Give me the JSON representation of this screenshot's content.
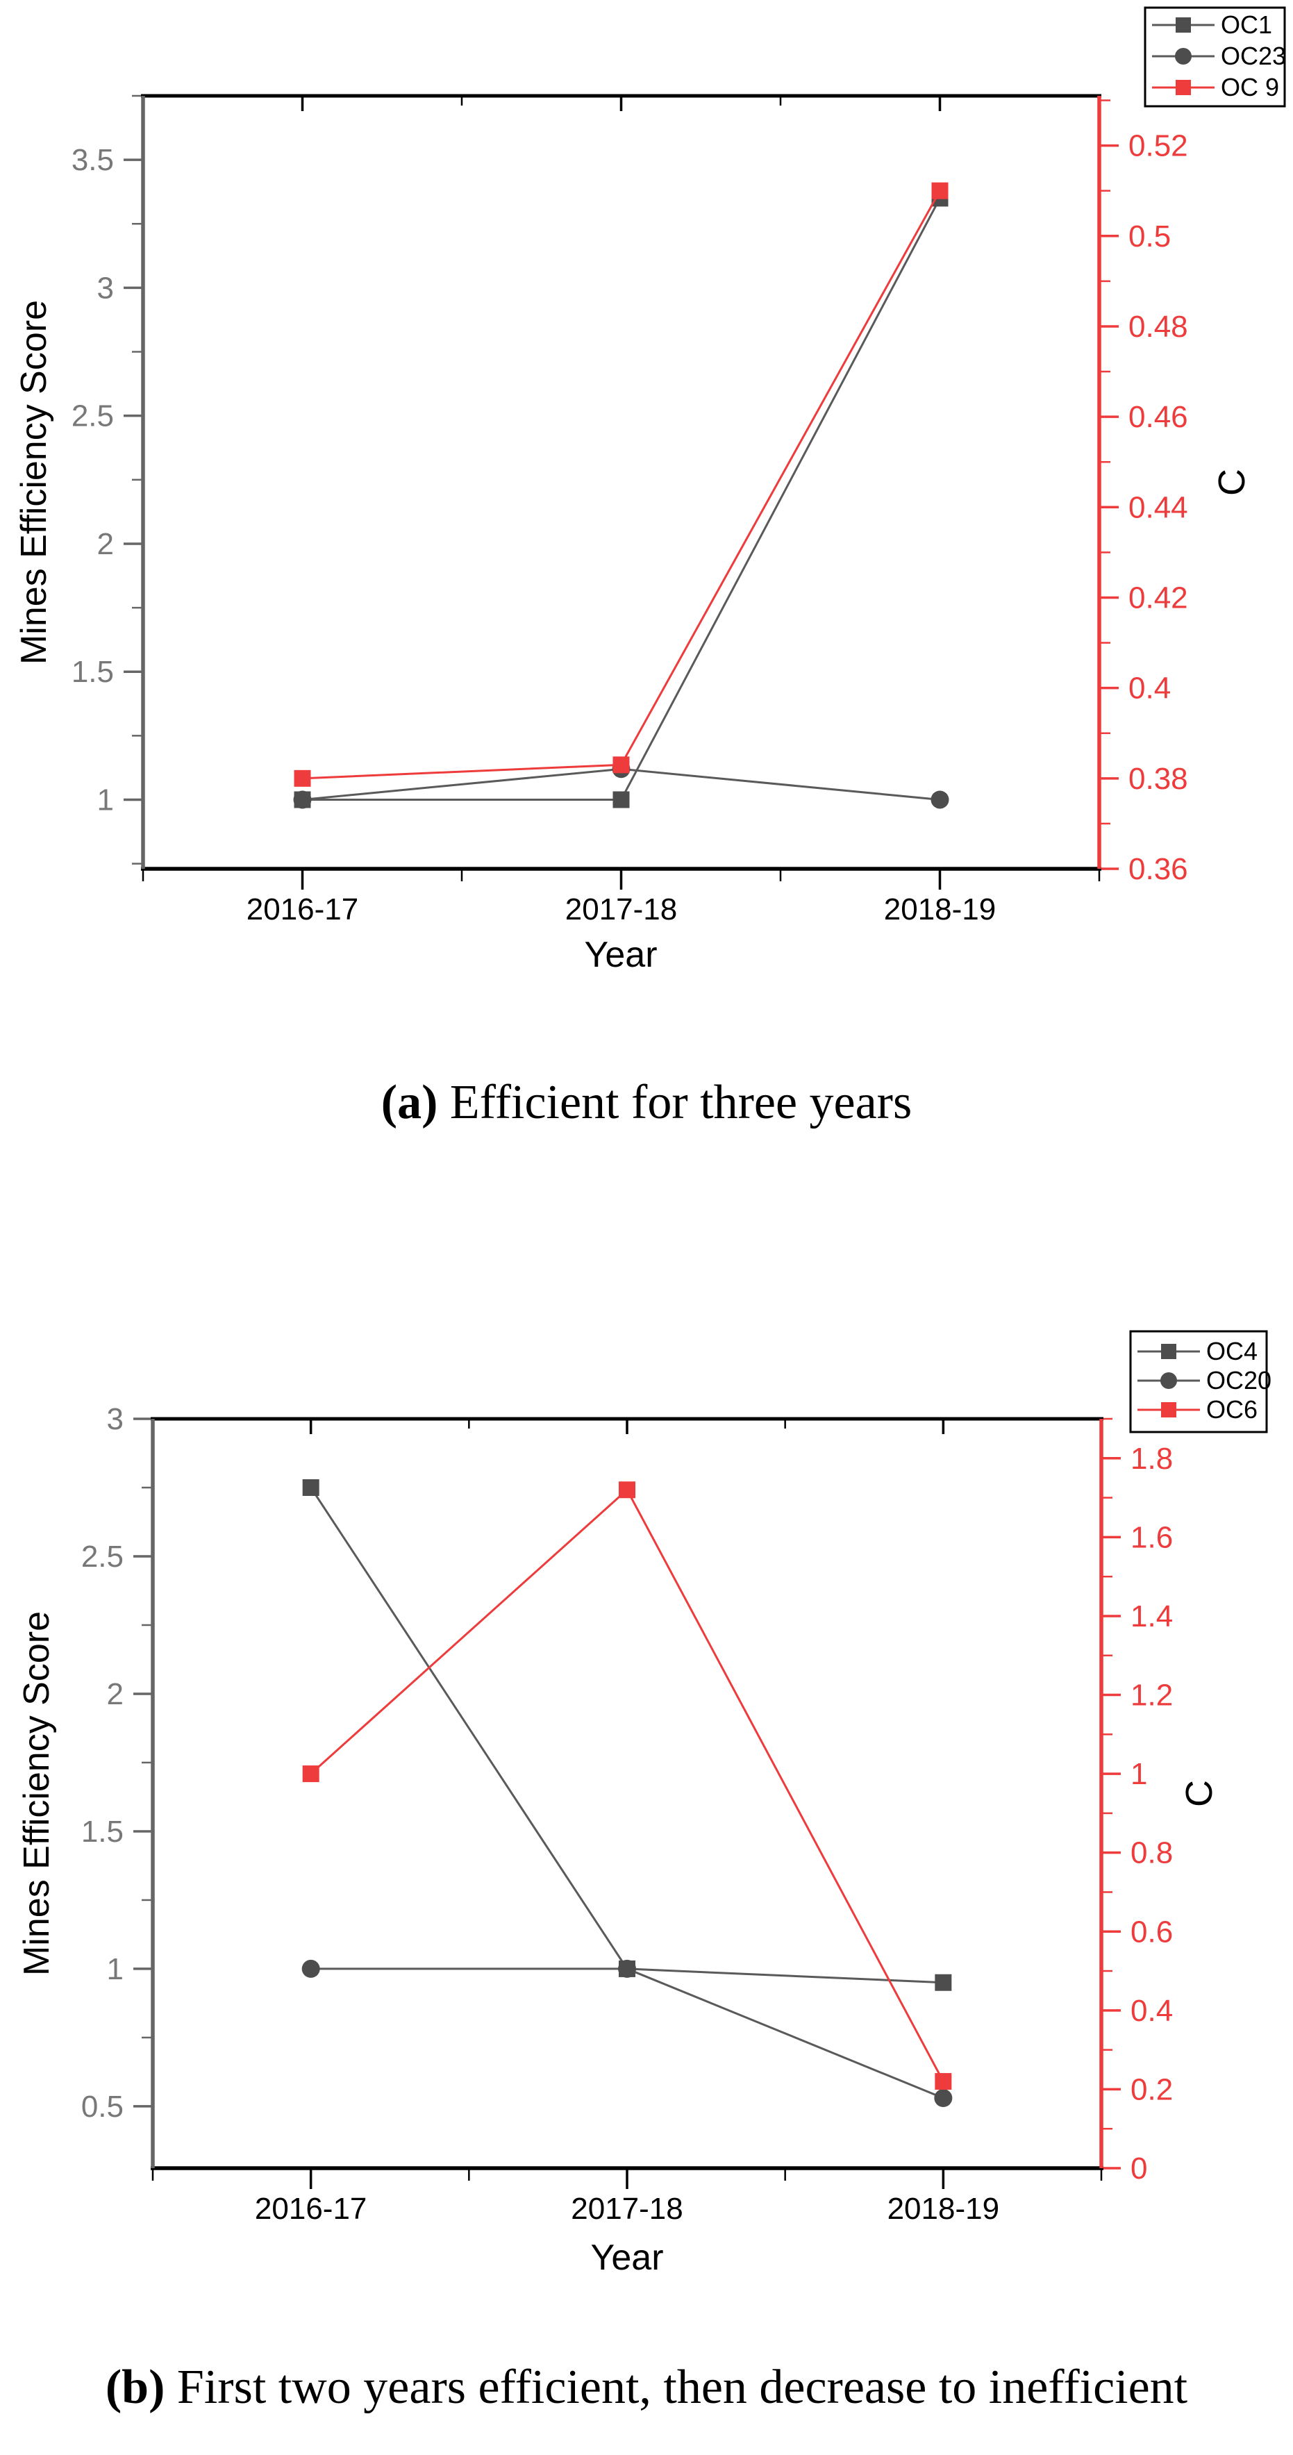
{
  "figure": {
    "caption_a": {
      "marker": "(a)",
      "text": " Efficient for three years"
    },
    "caption_b": {
      "marker": "(b)",
      "text": " First two years efficient, then decrease to inefficient"
    }
  },
  "colors": {
    "red_accent": "#EE3B3B",
    "dark_marker": "#4D4D4D",
    "dark_line": "#5A5A5A",
    "left_axis": "#666666",
    "left_tick_label": "#787878",
    "black": "#000000",
    "background": "#FFFFFF"
  },
  "chart_data": [
    {
      "id": "a",
      "type": "line",
      "categories": [
        "2016-17",
        "2017-18",
        "2018-19"
      ],
      "xlabel": "Year",
      "ylabel_left": "Mines Efficiency Score",
      "ylabel_right": "C",
      "axis_left": {
        "min": 0.73,
        "max": 3.75,
        "ticks": [
          1,
          1.5,
          2,
          2.5,
          3,
          3.5
        ],
        "minor_step": 0.25
      },
      "axis_right": {
        "min": 0.36,
        "max": 0.531,
        "ticks": [
          0.36,
          0.38,
          0.4,
          0.42,
          0.44,
          0.46,
          0.48,
          0.5,
          0.52
        ],
        "minor_step": 0.01
      },
      "grid": false,
      "legend_position": "top-right-outside",
      "series": [
        {
          "name": "OC1",
          "axis": "left",
          "marker": "square",
          "color": "#4D4D4D",
          "line_color": "#5A5A5A",
          "values": [
            1.0,
            1.0,
            3.35
          ]
        },
        {
          "name": "OC23",
          "axis": "left",
          "marker": "circle",
          "color": "#4D4D4D",
          "line_color": "#5A5A5A",
          "values": [
            1.0,
            1.12,
            1.0
          ]
        },
        {
          "name": "OC 9",
          "axis": "right",
          "marker": "square",
          "color": "#EE3B3B",
          "line_color": "#EE3B3B",
          "values": [
            0.38,
            0.383,
            0.51
          ]
        }
      ]
    },
    {
      "id": "b",
      "type": "line",
      "categories": [
        "2016-17",
        "2017-18",
        "2018-19"
      ],
      "xlabel": "Year",
      "ylabel_left": "Mines Efficiency Score",
      "ylabel_right": "C",
      "axis_left": {
        "min": 0.275,
        "max": 3.0,
        "ticks": [
          0.5,
          1,
          1.5,
          2,
          2.5,
          3
        ],
        "minor_step": 0.25
      },
      "axis_right": {
        "min": 0,
        "max": 1.9,
        "ticks": [
          0,
          0.2,
          0.4,
          0.6,
          0.8,
          1,
          1.2,
          1.4,
          1.6,
          1.8
        ],
        "minor_step": 0.1
      },
      "grid": false,
      "legend_position": "top-right-outside",
      "series": [
        {
          "name": "OC4",
          "axis": "left",
          "marker": "square",
          "color": "#4D4D4D",
          "line_color": "#5A5A5A",
          "values": [
            2.75,
            1.0,
            0.95
          ]
        },
        {
          "name": "OC20",
          "axis": "left",
          "marker": "circle",
          "color": "#4D4D4D",
          "line_color": "#5A5A5A",
          "values": [
            1.0,
            1.0,
            0.53
          ]
        },
        {
          "name": "OC6",
          "axis": "right",
          "marker": "square",
          "color": "#EE3B3B",
          "line_color": "#EE3B3B",
          "values": [
            1.0,
            1.72,
            0.22
          ]
        }
      ]
    }
  ]
}
